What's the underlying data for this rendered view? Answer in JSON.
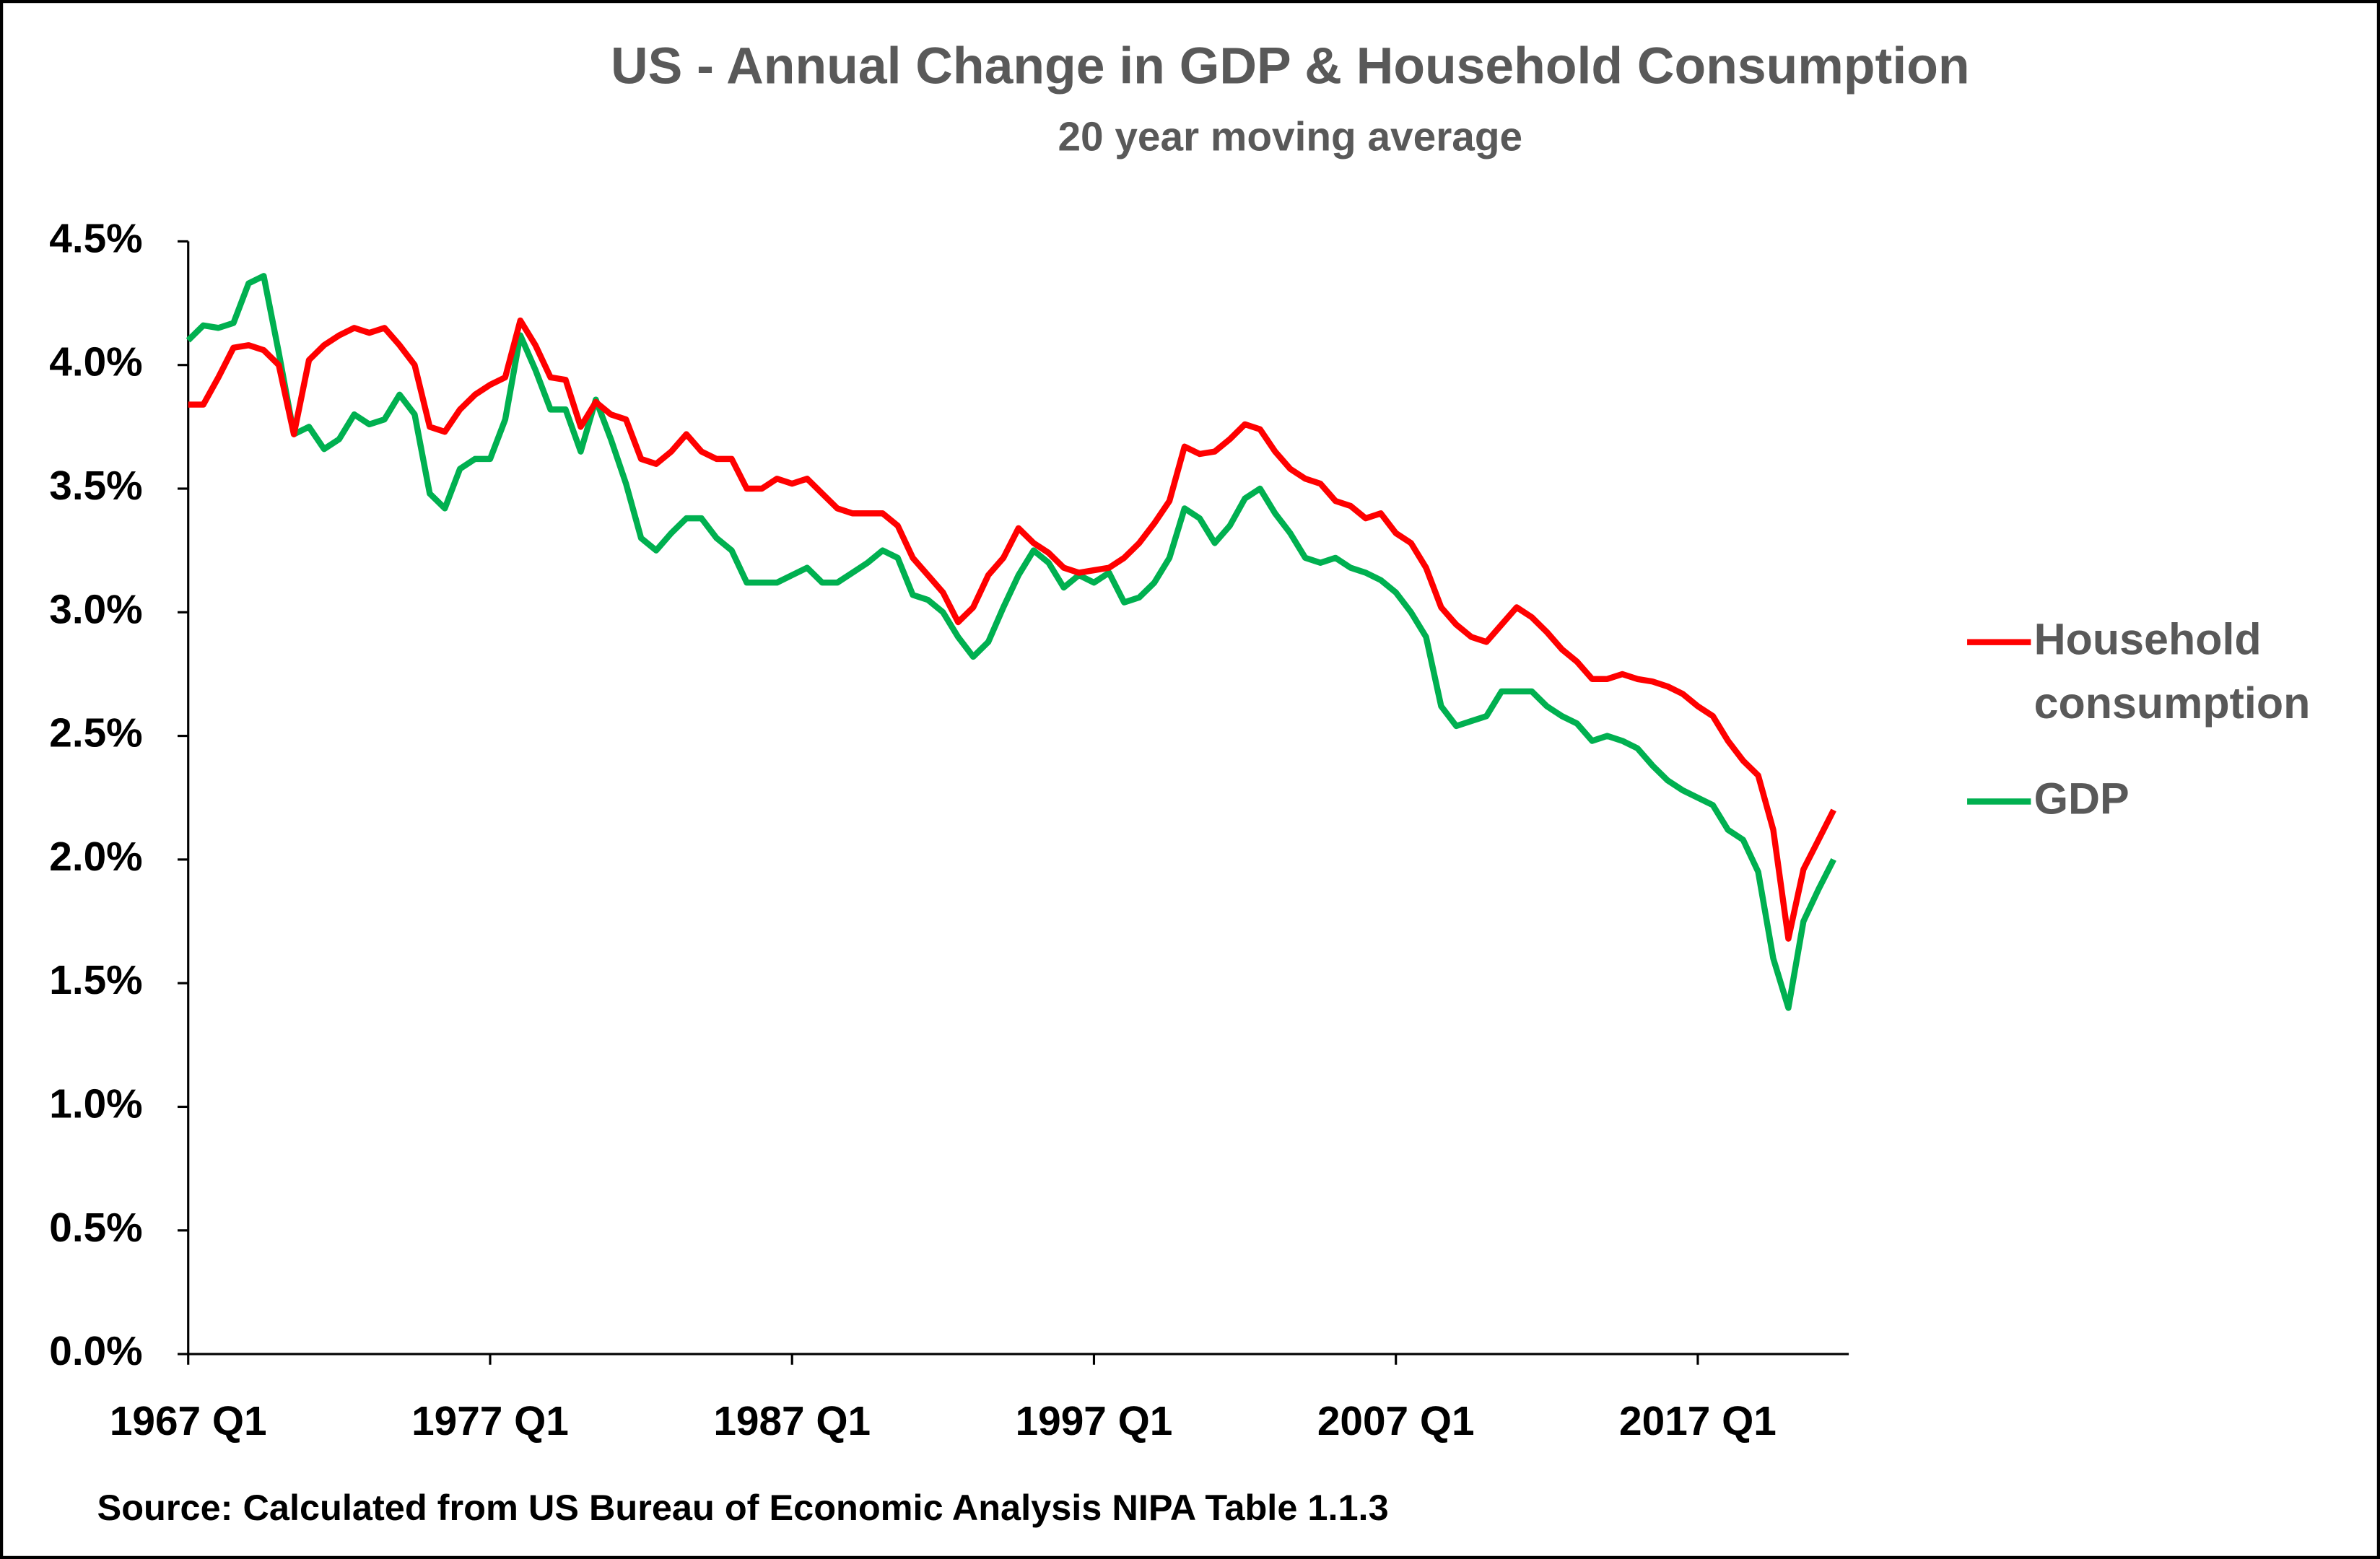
{
  "chart_data": {
    "type": "line",
    "title": "US - Annual Change in GDP & Household Consumption",
    "subtitle": "20 year moving average",
    "source": "Source: Calculated from US Bureau of Economic Analysis NIPA Table 1.1.3",
    "categories": [
      "1967 Q1",
      null,
      null,
      null,
      null,
      null,
      null,
      null,
      null,
      null,
      null,
      null,
      null,
      null,
      null,
      null,
      null,
      null,
      null,
      null,
      "1977 Q1",
      null,
      null,
      null,
      null,
      null,
      null,
      null,
      null,
      null,
      null,
      null,
      null,
      null,
      null,
      null,
      null,
      null,
      null,
      null,
      "1987 Q1",
      null,
      null,
      null,
      null,
      null,
      null,
      null,
      null,
      null,
      null,
      null,
      null,
      null,
      null,
      null,
      null,
      null,
      null,
      null,
      "1997 Q1",
      null,
      null,
      null,
      null,
      null,
      null,
      null,
      null,
      null,
      null,
      null,
      null,
      null,
      null,
      null,
      null,
      null,
      null,
      null,
      "2007 Q1",
      null,
      null,
      null,
      null,
      null,
      null,
      null,
      null,
      null,
      null,
      null,
      null,
      null,
      null,
      null,
      null,
      null,
      null,
      null,
      "2017 Q1",
      null,
      null,
      null,
      null,
      null,
      null,
      null,
      null,
      null
    ],
    "series": [
      {
        "name": "Household consumption",
        "color": "#ff0000",
        "values": [
          3.84,
          3.84,
          3.95,
          4.07,
          4.08,
          4.06,
          4.0,
          3.72,
          4.02,
          4.08,
          4.12,
          4.15,
          4.13,
          4.15,
          4.08,
          4.0,
          3.75,
          3.73,
          3.82,
          3.88,
          3.92,
          3.95,
          4.18,
          4.08,
          3.95,
          3.94,
          3.75,
          3.85,
          3.8,
          3.78,
          3.62,
          3.6,
          3.65,
          3.72,
          3.65,
          3.62,
          3.62,
          3.5,
          3.5,
          3.54,
          3.52,
          3.54,
          3.48,
          3.42,
          3.4,
          3.4,
          3.4,
          3.35,
          3.22,
          3.15,
          3.08,
          2.96,
          3.02,
          3.15,
          3.22,
          3.34,
          3.28,
          3.24,
          3.18,
          3.16,
          3.17,
          3.18,
          3.22,
          3.28,
          3.36,
          3.45,
          3.67,
          3.64,
          3.65,
          3.7,
          3.76,
          3.74,
          3.65,
          3.58,
          3.54,
          3.52,
          3.45,
          3.43,
          3.38,
          3.4,
          3.32,
          3.28,
          3.18,
          3.02,
          2.95,
          2.9,
          2.88,
          2.95,
          3.02,
          2.98,
          2.92,
          2.85,
          2.8,
          2.73,
          2.73,
          2.75,
          2.73,
          2.72,
          2.7,
          2.67,
          2.62,
          2.58,
          2.48,
          2.4,
          2.34,
          2.12,
          1.68,
          1.96,
          2.08,
          2.2
        ]
      },
      {
        "name": "GDP",
        "color": "#00b050",
        "values": [
          4.1,
          4.16,
          4.15,
          4.17,
          4.33,
          4.36,
          4.05,
          3.72,
          3.75,
          3.66,
          3.7,
          3.8,
          3.76,
          3.78,
          3.88,
          3.8,
          3.48,
          3.42,
          3.58,
          3.62,
          3.62,
          3.78,
          4.12,
          3.98,
          3.82,
          3.82,
          3.65,
          3.86,
          3.7,
          3.52,
          3.3,
          3.25,
          3.32,
          3.38,
          3.38,
          3.3,
          3.25,
          3.12,
          3.12,
          3.12,
          3.15,
          3.18,
          3.12,
          3.12,
          3.16,
          3.2,
          3.25,
          3.22,
          3.07,
          3.05,
          3.0,
          2.9,
          2.82,
          2.88,
          3.02,
          3.15,
          3.25,
          3.2,
          3.1,
          3.15,
          3.12,
          3.16,
          3.04,
          3.06,
          3.12,
          3.22,
          3.42,
          3.38,
          3.28,
          3.35,
          3.46,
          3.5,
          3.4,
          3.32,
          3.22,
          3.2,
          3.22,
          3.18,
          3.16,
          3.13,
          3.08,
          3.0,
          2.9,
          2.62,
          2.54,
          2.56,
          2.58,
          2.68,
          2.68,
          2.68,
          2.62,
          2.58,
          2.55,
          2.48,
          2.5,
          2.48,
          2.45,
          2.38,
          2.32,
          2.28,
          2.25,
          2.22,
          2.12,
          2.08,
          1.95,
          1.6,
          1.4,
          1.75,
          1.88,
          2.0
        ]
      }
    ],
    "ylim": [
      0,
      4.5
    ],
    "yticks": [
      {
        "value": 0,
        "label": "0.0%"
      },
      {
        "value": 0.5,
        "label": "0.5%"
      },
      {
        "value": 1,
        "label": "1.0%"
      },
      {
        "value": 1.5,
        "label": "1.5%"
      },
      {
        "value": 2,
        "label": "2.0%"
      },
      {
        "value": 2.5,
        "label": "2.5%"
      },
      {
        "value": 3,
        "label": "3.0%"
      },
      {
        "value": 3.5,
        "label": "3.5%"
      },
      {
        "value": 4,
        "label": "4.0%"
      },
      {
        "value": 4.5,
        "label": "4.5%"
      }
    ],
    "grid": false,
    "legend": "right"
  }
}
